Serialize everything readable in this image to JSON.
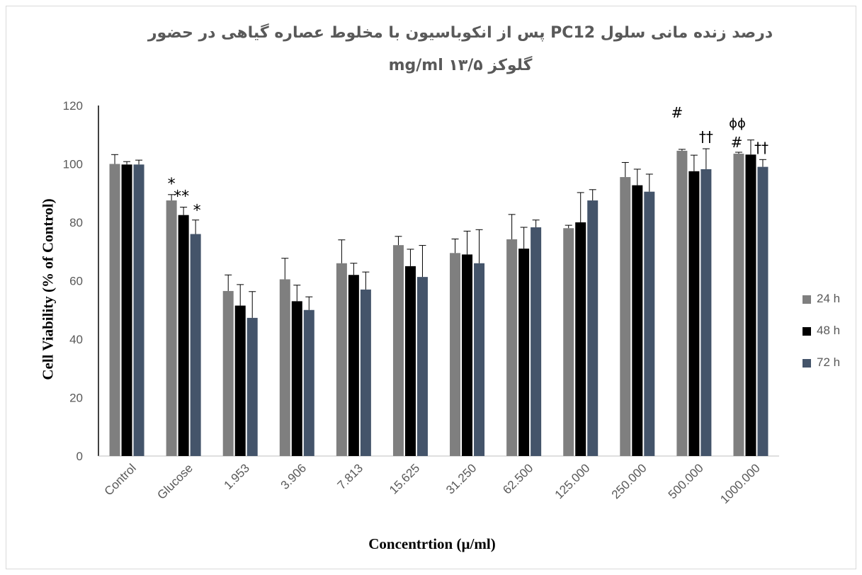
{
  "chart_data": {
    "type": "bar",
    "title_line1": "درصد زنده مانی سلول  PC12 پس از انکوباسیون با مخلوط عصاره گیاهی در حضور",
    "title_line2": "گلوکز mg/ml  ۱۳/۵",
    "xlabel": "Concentrtion (µ/ml)",
    "ylabel": "Cell Viability  (% of Control)",
    "ylim": [
      0,
      120
    ],
    "yticks": [
      0,
      20,
      40,
      60,
      80,
      100,
      120
    ],
    "categories": [
      "Control",
      "Glucose",
      "1.953",
      "3.906",
      "7.813",
      "15.625",
      "31.250",
      "62.500",
      "125.000",
      "250.000",
      "500.000",
      "1000.000"
    ],
    "series": [
      {
        "name": "24 h",
        "color": "#7f7f7f",
        "values": [
          100,
          87.5,
          56.5,
          60.5,
          66,
          72.2,
          69.5,
          74.2,
          78,
          95.5,
          104.5,
          103.5
        ],
        "errors": [
          3.2,
          2,
          5.5,
          7.2,
          8,
          3,
          4.8,
          8.5,
          1,
          5,
          0.5,
          0.5
        ]
      },
      {
        "name": "48 h",
        "color": "#000000",
        "values": [
          99.8,
          82.5,
          51.5,
          53,
          62,
          65,
          69,
          71,
          80,
          92.7,
          97.5,
          103.2
        ],
        "errors": [
          1,
          2.7,
          7.2,
          5.5,
          4,
          5.8,
          8,
          7.3,
          10.2,
          5.5,
          5.5,
          5
        ]
      },
      {
        "name": "72 h",
        "color": "#44546a",
        "values": [
          99.8,
          76,
          47.3,
          50,
          57,
          61.3,
          66,
          78.3,
          87.5,
          90.5,
          98.2,
          99
        ],
        "errors": [
          1.5,
          4.8,
          9,
          4.5,
          6,
          10.8,
          11.5,
          2.5,
          3.7,
          6,
          7,
          2.5
        ]
      }
    ],
    "annotations": [
      {
        "text": "*",
        "category": 1,
        "series": 0
      },
      {
        "text": "**",
        "category": 1,
        "series": 1
      },
      {
        "text": "*",
        "category": 1,
        "series": 2
      },
      {
        "text": "#",
        "category": 10,
        "series": 0
      },
      {
        "text": "††",
        "category": 10,
        "series": 2
      },
      {
        "text": "ɸɸ",
        "category": 11,
        "series": 0
      },
      {
        "text": "#",
        "category": 11,
        "series": 0
      },
      {
        "text": "††",
        "category": 11,
        "series": 2
      }
    ],
    "legend_position": "right",
    "grid": false
  }
}
